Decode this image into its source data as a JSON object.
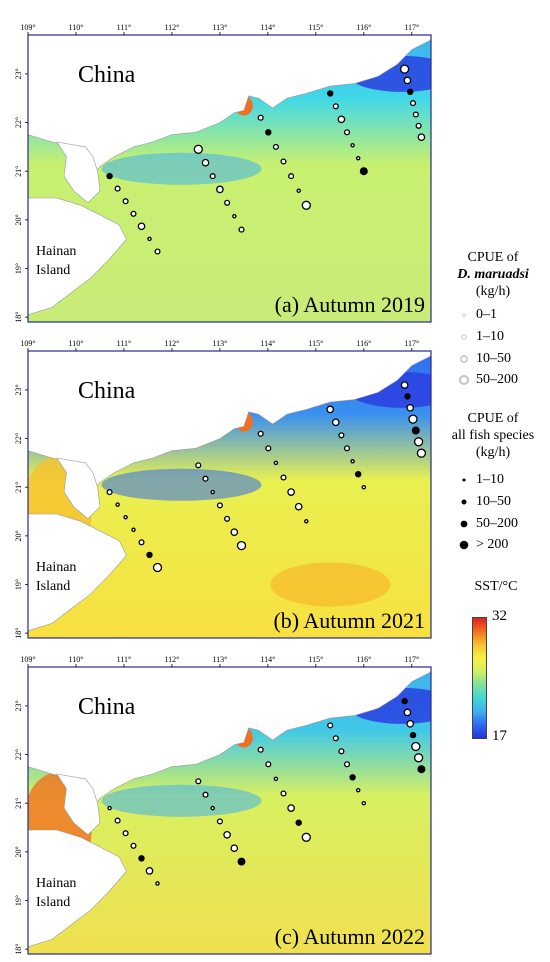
{
  "panels": [
    {
      "title": "(a) Autumn 2019",
      "country_label": "China",
      "island_label": [
        "Hainan",
        "Island"
      ]
    },
    {
      "title": "(b) Autumn 2021",
      "country_label": "China",
      "island_label": [
        "Hainan",
        "Island"
      ]
    },
    {
      "title": "(c) Autumn 2022",
      "country_label": "China",
      "island_label": [
        "Hainan",
        "Island"
      ]
    }
  ],
  "axes": {
    "lon_ticks": [
      "109°",
      "110°",
      "111°",
      "112°",
      "113°",
      "114°",
      "115°",
      "116°",
      "117°"
    ],
    "lat_ticks": [
      "18°",
      "19°",
      "20°",
      "21°",
      "22°",
      "23°"
    ]
  },
  "legend": {
    "cpue_species_title": [
      "CPUE of",
      "D. maruadsi",
      "(kg/h)"
    ],
    "cpue_species_classes": [
      "0–1",
      "1–10",
      "10–50",
      "50–200"
    ],
    "cpue_all_title": [
      "CPUE of",
      "all fish species",
      "(kg/h)"
    ],
    "cpue_all_classes": [
      "1–10",
      "10–50",
      "50–200",
      "> 200"
    ],
    "sst_title": "SST/°C",
    "sst_max": "32",
    "sst_min": "17"
  },
  "colors": {
    "sst_scale": [
      "#2233dd",
      "#2f6cf0",
      "#3fb0f0",
      "#40d8d8",
      "#80e0a0",
      "#d0f060",
      "#f8f040",
      "#f8c030",
      "#f07020",
      "#e02020"
    ],
    "land": "#ffffff",
    "frame": "#2a2a88"
  },
  "chart_data": {
    "type": "map",
    "lon_range": [
      109,
      117.4
    ],
    "lat_range": [
      17.9,
      23.8
    ],
    "transects": [
      {
        "start": [
          110.7,
          20.9
        ],
        "end": [
          111.7,
          19.35
        ]
      },
      {
        "start": [
          112.55,
          21.45
        ],
        "end": [
          113.45,
          19.8
        ]
      },
      {
        "start": [
          113.85,
          22.1
        ],
        "end": [
          114.8,
          20.3
        ]
      },
      {
        "start": [
          115.3,
          22.6
        ],
        "end": [
          116.0,
          21.0
        ]
      },
      {
        "start": [
          116.85,
          23.1
        ],
        "end": [
          117.2,
          21.7
        ]
      }
    ]
  }
}
